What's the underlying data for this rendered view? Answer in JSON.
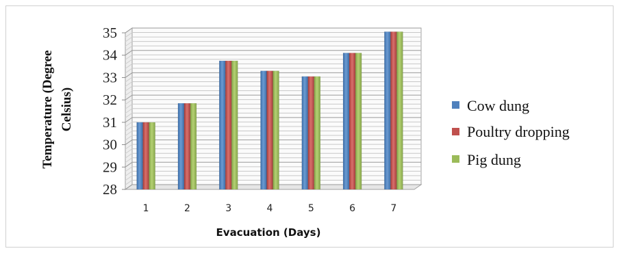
{
  "chart_data": {
    "type": "bar",
    "title": "",
    "xlabel": "Evacuation  (Days)",
    "ylabel_lines": [
      "Temperature  (Degree",
      "Celsius)"
    ],
    "categories": [
      "1",
      "2",
      "3",
      "4",
      "5",
      "6",
      "7"
    ],
    "series": [
      {
        "name": "Cow dung",
        "color": "#4f81bd",
        "values": [
          31.0,
          31.85,
          33.75,
          33.3,
          33.05,
          34.1,
          35.05
        ]
      },
      {
        "name": "Poultry dropping",
        "color": "#c0504d",
        "values": [
          31.0,
          31.85,
          33.75,
          33.3,
          33.05,
          34.1,
          35.05
        ]
      },
      {
        "name": "Pig dung",
        "color": "#9bbb59",
        "values": [
          31.0,
          31.85,
          33.75,
          33.3,
          33.05,
          34.1,
          35.05
        ]
      }
    ],
    "ylim": [
      28,
      35
    ],
    "yticks": [
      "28",
      "29",
      "30",
      "31",
      "32",
      "33",
      "34",
      "35"
    ],
    "grid": true,
    "legend_position": "right"
  }
}
